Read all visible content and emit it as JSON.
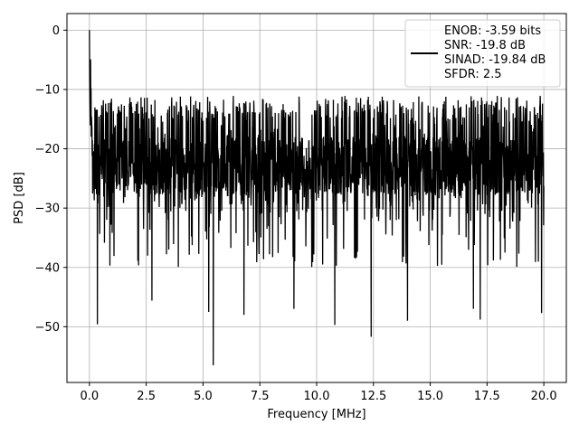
{
  "chart_data": {
    "type": "line",
    "title": "",
    "xlabel": "Frequency [MHz]",
    "ylabel": "PSD [dB]",
    "xlim": [
      -0.99,
      20.99
    ],
    "ylim": [
      -59.4,
      2.8
    ],
    "xticks": [
      0.0,
      2.5,
      5.0,
      7.5,
      10.0,
      12.5,
      15.0,
      17.5,
      20.0
    ],
    "xtick_labels": [
      "0.0",
      "2.5",
      "5.0",
      "7.5",
      "10.0",
      "12.5",
      "15.0",
      "17.5",
      "20.0"
    ],
    "yticks": [
      0,
      -10,
      -20,
      -30,
      -40,
      -50
    ],
    "ytick_labels": [
      "0",
      "−10",
      "−20",
      "−30",
      "−40",
      "−50"
    ],
    "grid": true,
    "legend_position": "top-right",
    "legend": [
      "ENOB: -3.59 bits",
      "SNR: -19.8 dB",
      "SINAD: -19.84 dB",
      "SFDR: 2.5"
    ],
    "series": [
      {
        "color": "#000000",
        "x_range": [
          0.0,
          20.0
        ],
        "typical_band": [
          -31,
          -12
        ],
        "peak": {
          "x": 0.0,
          "y": 0.0
        },
        "notable_dips": [
          {
            "x": 0.35,
            "y": -49.6
          },
          {
            "x": 2.75,
            "y": -45.6
          },
          {
            "x": 5.25,
            "y": -47.5
          },
          {
            "x": 5.45,
            "y": -56.5
          },
          {
            "x": 6.8,
            "y": -48.0
          },
          {
            "x": 9.0,
            "y": -47.0
          },
          {
            "x": 10.8,
            "y": -49.7
          },
          {
            "x": 12.4,
            "y": -51.7
          },
          {
            "x": 14.0,
            "y": -49.0
          },
          {
            "x": 16.9,
            "y": -47.0
          },
          {
            "x": 17.2,
            "y": -48.8
          },
          {
            "x": 19.9,
            "y": -47.7
          }
        ]
      }
    ]
  }
}
